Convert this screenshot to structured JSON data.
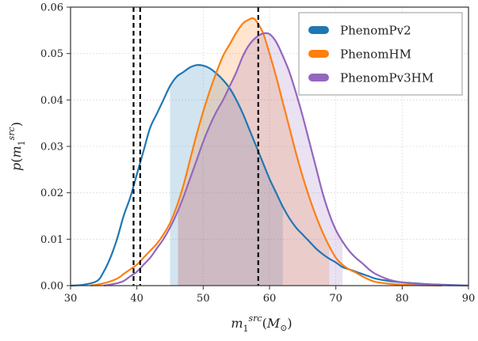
{
  "chart_data": {
    "type": "line",
    "xlabel": "m_1^{src}(M_⊙)",
    "ylabel": "p(m_1^{src})",
    "xlim": [
      30,
      90
    ],
    "ylim": [
      0,
      0.06
    ],
    "x_ticks": [
      "30",
      "40",
      "50",
      "60",
      "70",
      "80",
      "90"
    ],
    "y_ticks": [
      "0.00",
      "0.01",
      "0.02",
      "0.03",
      "0.04",
      "0.05",
      "0.06"
    ],
    "grid": true,
    "legend_position": "top-right",
    "vlines": [
      39.5,
      40.5,
      58.3
    ],
    "series": [
      {
        "name": "PhenomPv2",
        "color": "#1f77b4",
        "fill_range": [
          45.0,
          62.0
        ],
        "points": [
          [
            30,
            0
          ],
          [
            32,
            0.0002
          ],
          [
            34,
            0.001
          ],
          [
            35,
            0.003
          ],
          [
            36,
            0.006
          ],
          [
            37,
            0.01
          ],
          [
            38,
            0.015
          ],
          [
            39,
            0.019
          ],
          [
            40,
            0.024
          ],
          [
            41,
            0.029
          ],
          [
            42,
            0.034
          ],
          [
            43,
            0.037
          ],
          [
            44,
            0.04
          ],
          [
            45,
            0.043
          ],
          [
            46,
            0.045
          ],
          [
            47,
            0.046
          ],
          [
            48,
            0.047
          ],
          [
            49,
            0.0475
          ],
          [
            50,
            0.0474
          ],
          [
            51,
            0.0468
          ],
          [
            52,
            0.0457
          ],
          [
            53,
            0.0443
          ],
          [
            54,
            0.0425
          ],
          [
            55,
            0.04
          ],
          [
            56,
            0.037
          ],
          [
            57,
            0.0335
          ],
          [
            58,
            0.03
          ],
          [
            59,
            0.0265
          ],
          [
            60,
            0.023
          ],
          [
            61,
            0.02
          ],
          [
            62,
            0.017
          ],
          [
            63,
            0.0145
          ],
          [
            64,
            0.0125
          ],
          [
            65,
            0.011
          ],
          [
            66,
            0.0095
          ],
          [
            67,
            0.008
          ],
          [
            68,
            0.0068
          ],
          [
            69,
            0.0058
          ],
          [
            70,
            0.005
          ],
          [
            71,
            0.004
          ],
          [
            72,
            0.0035
          ],
          [
            73,
            0.003
          ],
          [
            74,
            0.0025
          ],
          [
            75,
            0.002
          ],
          [
            76,
            0.0015
          ],
          [
            78,
            0.001
          ],
          [
            80,
            0.0007
          ],
          [
            82,
            0.0005
          ],
          [
            84,
            0.0003
          ],
          [
            86,
            0.0002
          ],
          [
            88,
            0.0001
          ],
          [
            90,
            0
          ]
        ]
      },
      {
        "name": "PhenomHM",
        "color": "#ff7f0e",
        "fill_range": [
          46.2,
          69.0
        ],
        "points": [
          [
            33,
            0
          ],
          [
            35,
            0.0005
          ],
          [
            37,
            0.0015
          ],
          [
            38,
            0.0025
          ],
          [
            39,
            0.0035
          ],
          [
            40,
            0.0045
          ],
          [
            41,
            0.006
          ],
          [
            42,
            0.0075
          ],
          [
            43,
            0.009
          ],
          [
            44,
            0.011
          ],
          [
            45,
            0.0135
          ],
          [
            46,
            0.017
          ],
          [
            47,
            0.0215
          ],
          [
            48,
            0.027
          ],
          [
            49,
            0.0325
          ],
          [
            50,
            0.0375
          ],
          [
            51,
            0.042
          ],
          [
            52,
            0.046
          ],
          [
            53,
            0.0495
          ],
          [
            54,
            0.052
          ],
          [
            55,
            0.0545
          ],
          [
            56,
            0.0565
          ],
          [
            57,
            0.0574
          ],
          [
            57.5,
            0.0576
          ],
          [
            58,
            0.057
          ],
          [
            59,
            0.0545
          ],
          [
            60,
            0.05
          ],
          [
            61,
            0.045
          ],
          [
            62,
            0.0395
          ],
          [
            63,
            0.034
          ],
          [
            64,
            0.0285
          ],
          [
            65,
            0.0235
          ],
          [
            66,
            0.019
          ],
          [
            67,
            0.015
          ],
          [
            68,
            0.0115
          ],
          [
            69,
            0.0085
          ],
          [
            70,
            0.006
          ],
          [
            71,
            0.0045
          ],
          [
            72,
            0.0035
          ],
          [
            73,
            0.0028
          ],
          [
            74,
            0.002
          ],
          [
            75,
            0.0013
          ],
          [
            76,
            0.0008
          ],
          [
            78,
            0.0004
          ],
          [
            80,
            0.0002
          ],
          [
            82,
            0.0001
          ],
          [
            84,
            5e-05
          ],
          [
            86,
            0
          ]
        ]
      },
      {
        "name": "PhenomPv3HM",
        "color": "#9467bd",
        "fill_range": [
          46.2,
          71.0
        ],
        "points": [
          [
            35,
            0
          ],
          [
            37,
            0.0005
          ],
          [
            38,
            0.001
          ],
          [
            39,
            0.002
          ],
          [
            40,
            0.003
          ],
          [
            41,
            0.0045
          ],
          [
            42,
            0.006
          ],
          [
            43,
            0.008
          ],
          [
            44,
            0.01
          ],
          [
            45,
            0.0125
          ],
          [
            46,
            0.0155
          ],
          [
            47,
            0.019
          ],
          [
            48,
            0.023
          ],
          [
            49,
            0.027
          ],
          [
            50,
            0.031
          ],
          [
            51,
            0.0345
          ],
          [
            52,
            0.0375
          ],
          [
            53,
            0.04
          ],
          [
            54,
            0.043
          ],
          [
            55,
            0.046
          ],
          [
            56,
            0.0495
          ],
          [
            57,
            0.052
          ],
          [
            58,
            0.0535
          ],
          [
            59,
            0.0543
          ],
          [
            60,
            0.0542
          ],
          [
            61,
            0.0525
          ],
          [
            62,
            0.0495
          ],
          [
            63,
            0.046
          ],
          [
            64,
            0.0415
          ],
          [
            65,
            0.0365
          ],
          [
            66,
            0.031
          ],
          [
            67,
            0.0255
          ],
          [
            68,
            0.02
          ],
          [
            69,
            0.0155
          ],
          [
            70,
            0.012
          ],
          [
            71,
            0.0095
          ],
          [
            72,
            0.0075
          ],
          [
            73,
            0.006
          ],
          [
            74,
            0.0048
          ],
          [
            75,
            0.0035
          ],
          [
            76,
            0.0025
          ],
          [
            78,
            0.0013
          ],
          [
            80,
            0.0007
          ],
          [
            82,
            0.0004
          ],
          [
            84,
            0.0002
          ],
          [
            86,
            0.0001
          ],
          [
            88,
            5e-05
          ],
          [
            90,
            0
          ]
        ]
      }
    ]
  }
}
